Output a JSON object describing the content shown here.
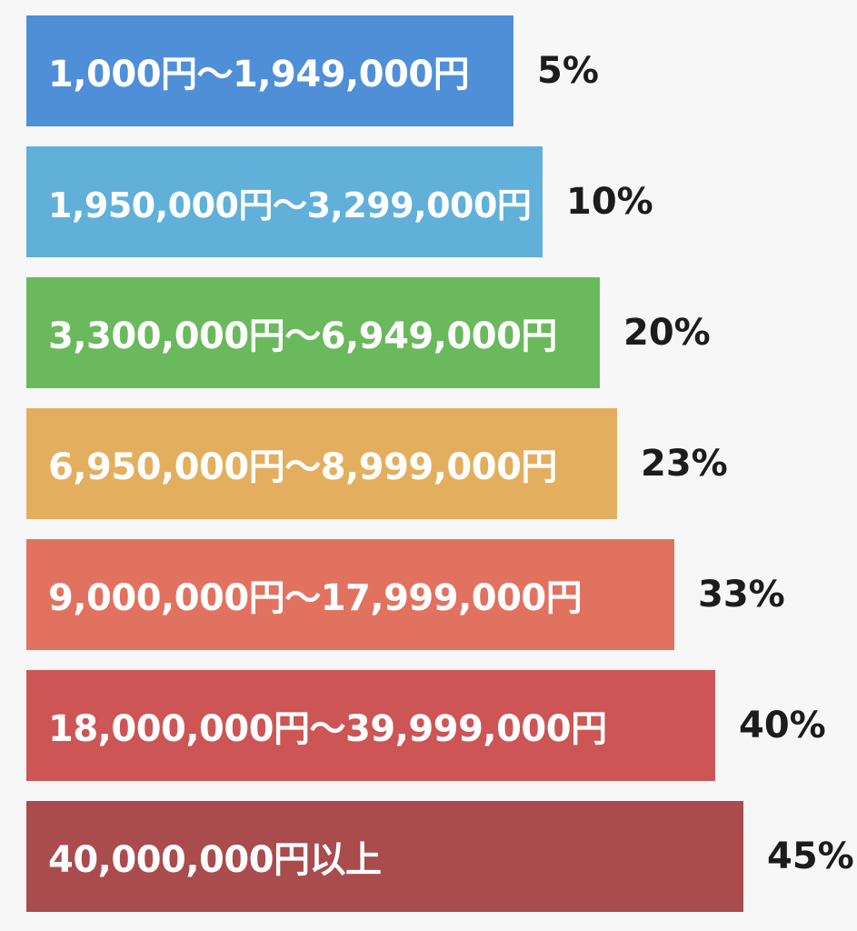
{
  "chart_data": {
    "type": "bar",
    "orientation": "horizontal",
    "categories": [
      "1,000円〜1,949,000円",
      "1,950,000円〜3,299,000円",
      "3,300,000円〜6,949,000円",
      "6,950,000円〜8,999,000円",
      "9,000,000円〜17,999,000円",
      "18,000,000円〜39,999,000円",
      "40,000,000円以上"
    ],
    "values": [
      5,
      10,
      20,
      23,
      33,
      40,
      45
    ],
    "value_labels": [
      "5%",
      "10%",
      "20%",
      "23%",
      "33%",
      "40%",
      "45%"
    ],
    "colors": [
      "#4f8fd8",
      "#60b0da",
      "#6ab95d",
      "#e3af5e",
      "#e27260",
      "#cd5555",
      "#aa4b4d"
    ],
    "grid": false,
    "legend": "none"
  }
}
